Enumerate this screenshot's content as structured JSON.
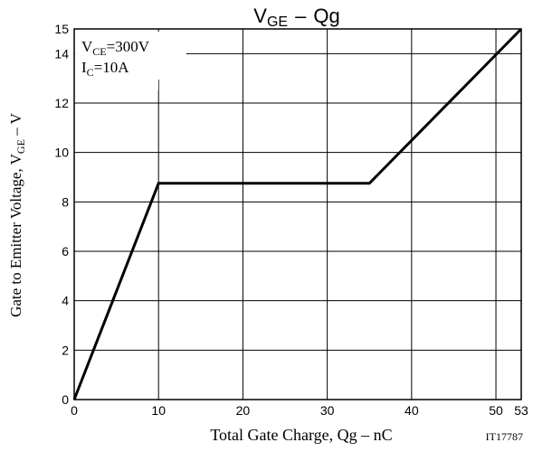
{
  "chart_data": {
    "type": "line",
    "title": {
      "main": "V",
      "sub": "GE",
      "sep": "–",
      "tail": "Qg"
    },
    "xlabel": "Total Gate Charge, Qg – nC",
    "ylabel": {
      "pre": "Gate to Emitter Voltage, V",
      "sub": "GE",
      "post": " – V"
    },
    "xlim": [
      0,
      53
    ],
    "ylim": [
      0,
      15
    ],
    "x_ticks": [
      0,
      10,
      20,
      30,
      40,
      50,
      53
    ],
    "y_ticks": [
      0,
      2,
      4,
      6,
      8,
      10,
      12,
      14,
      15
    ],
    "grid": true,
    "series": [
      {
        "x": [
          0,
          10,
          35,
          53
        ],
        "y": [
          0,
          8.75,
          8.75,
          15
        ]
      }
    ],
    "annotations": {
      "line1": {
        "pre": "V",
        "sub": "CE",
        "post": "=300V"
      },
      "line2": {
        "pre": "I",
        "sub": "C",
        "post": "=10A"
      }
    },
    "figure_id": "IT17787"
  }
}
